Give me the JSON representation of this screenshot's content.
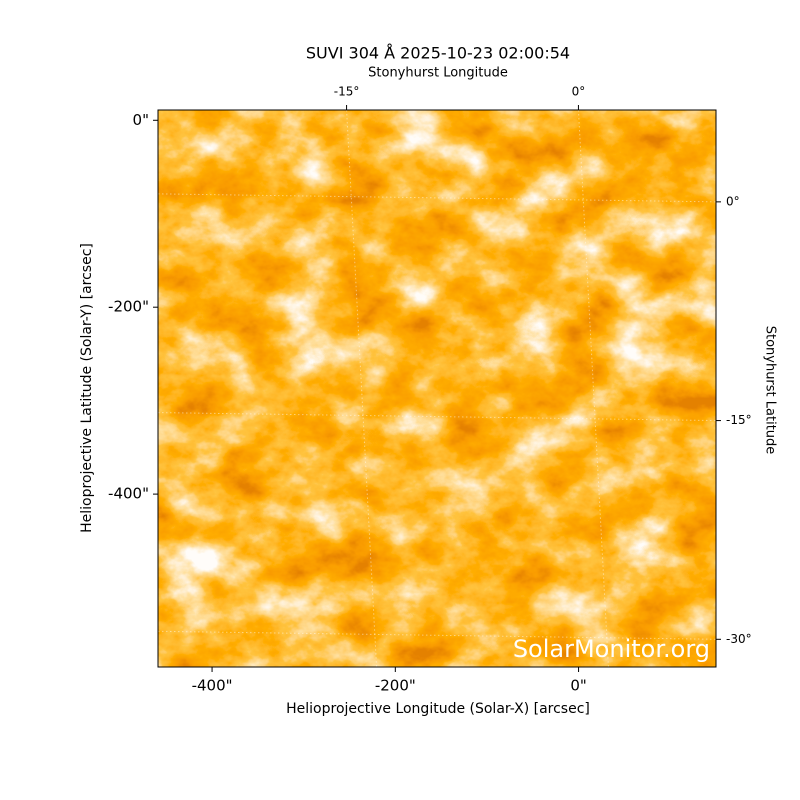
{
  "chart_data": {
    "type": "image",
    "title": "SUVI 304 Å 2025-10-23 02:00:54",
    "xlabel": "Helioprojective Longitude (Solar-X) [arcsec]",
    "ylabel": "Helioprojective Latitude (Solar-Y) [arcsec]",
    "x2label": "Stonyhurst Longitude",
    "y2label": "Stonyhurst Latitude",
    "watermark": "SolarMonitor.org",
    "xlim": [
      -459,
      150
    ],
    "ylim": [
      11,
      -585
    ],
    "xticks": [
      {
        "value": -400,
        "label": "-400\""
      },
      {
        "value": -200,
        "label": "-200\""
      },
      {
        "value": 0,
        "label": "0\""
      }
    ],
    "yticks": [
      {
        "value": 0,
        "label": "0\""
      },
      {
        "value": -200,
        "label": "-200\""
      },
      {
        "value": -400,
        "label": "-400\""
      }
    ],
    "x2lim": [
      -27.2,
      8.9
    ],
    "x2ticks": [
      {
        "value": -15,
        "label": "-15°"
      },
      {
        "value": 0,
        "label": "0°"
      }
    ],
    "y2lim": [
      6.3,
      -31.9
    ],
    "y2ticks": [
      {
        "value": 0,
        "label": "0°"
      },
      {
        "value": -15,
        "label": "-15°"
      },
      {
        "value": -30,
        "label": "-30°"
      }
    ],
    "grid": true
  }
}
